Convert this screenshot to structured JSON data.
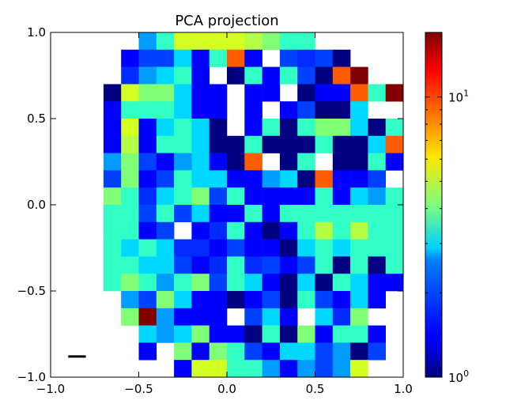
{
  "chart_data": {
    "type": "heatmap",
    "title": "PCA projection",
    "xlabel": "",
    "ylabel": "",
    "xlim": [
      -1.0,
      1.0
    ],
    "ylim": [
      -1.0,
      1.0
    ],
    "x_ticks": [
      -1.0,
      -0.5,
      0.0,
      0.5,
      1.0
    ],
    "x_tick_labels": [
      "−1.0",
      "−0.5",
      "0.0",
      "0.5",
      "1.0"
    ],
    "y_ticks": [
      -1.0,
      -0.5,
      0.0,
      0.5,
      1.0
    ],
    "y_tick_labels": [
      "−1.0",
      "−0.5",
      "0.0",
      "0.5",
      "1.0"
    ],
    "grid": false,
    "bins": 20,
    "colormap": "jet",
    "color_scale": "log",
    "color_range": [
      1,
      17
    ],
    "colorbar": {
      "position": "right",
      "ticks": [
        1,
        10
      ],
      "tick_labels": [
        {
          "base": "10",
          "exp": "0"
        },
        {
          "base": "10",
          "exp": "1"
        }
      ]
    },
    "scale_bar": {
      "x": [
        -0.9,
        -0.8
      ],
      "y": -0.88
    },
    "missing": "=",
    "grid_rows_top_to_bottom": [
      "=====EGJJJJIHGG======",
      "====BDDFBG:B=DCDA=====",
      "====CEFGB=AGBGDA:K===",
      "===AJHHFBB=BB=ABB:GK===",
      "===BGGGFBB=B=BDAAF==A=",
      "===BJBFGFA=BGAGHHFAGHB",
      "===BIBGGFAAGAAAGAAF:HE",
      "===EHDBEFBA:=AG=AAGBIB",
      "===DHBDGFFBBEFA:BBD=GE",
      "===HGCFGHDGBBBBGBFEGEB",
      "===GGDGDFBBGBGGGGGGGIA",
      "===GGBD=BCGBABGIGIGGGG",
      "===GFGFCCBDBBAFGFGGGF:",
      "===GGFFDBCGCDBDGAGAGG=",
      "===GHGEGHDGFBAFAGFBB=",
      "====EDHFBBABDAGDBFB=",
      "====HKEBBB=DFB=FCH==",
      "=====FEFHBBAGAHBGGB=",
      "=====B=HBHGDBFFDEAD=",
      "=======BJJGGEBEDEJ===="
    ],
    "value_code": {
      "=": "no data (white)",
      "A": 1,
      "B": 1.4,
      "C": 1.6,
      "D": 1.7,
      "E": 2.2,
      "F": 2.6,
      "G": 3.2,
      "H": 4.2,
      "I": 5.0,
      "J": 5.6,
      "K": 17,
      ":": 10
    }
  }
}
